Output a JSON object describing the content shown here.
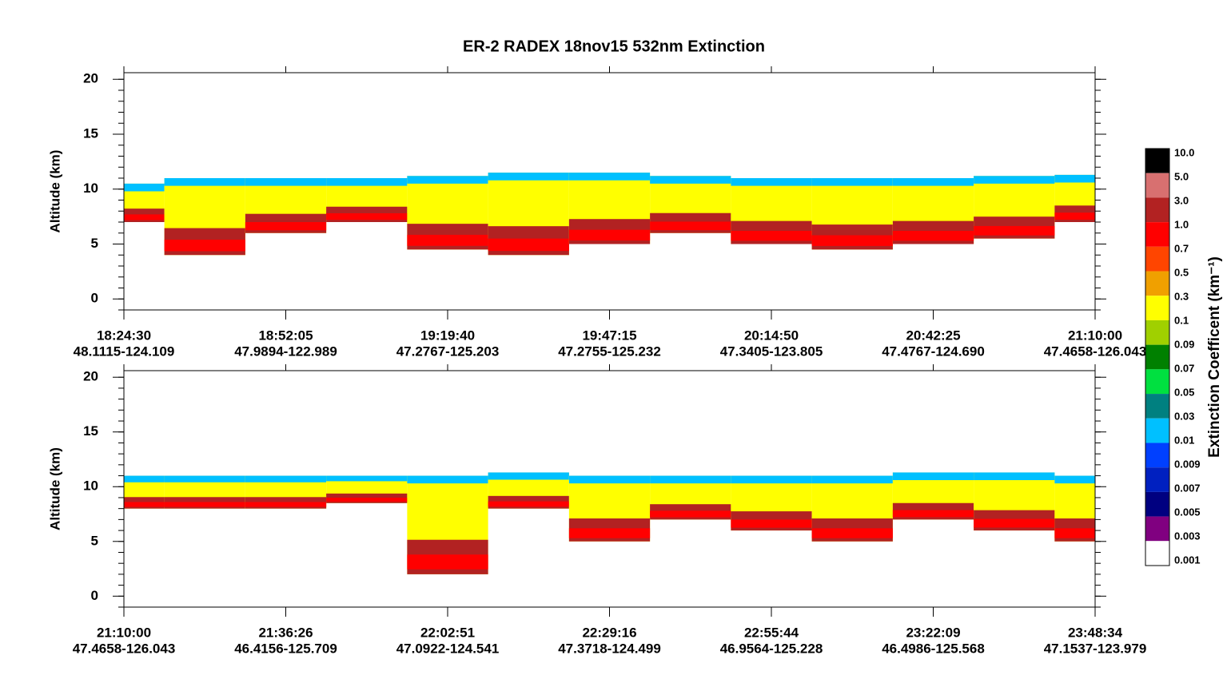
{
  "chart_data": {
    "type": "curtain",
    "title": "ER-2  RADEX  18nov15  532nm Extinction",
    "panels": [
      {
        "ylabel": "Altitude (km)",
        "ylim": [
          -1,
          20.6
        ],
        "yticks": [
          0,
          5,
          10,
          15,
          20
        ],
        "xticks": [
          {
            "time": "18:24:30",
            "location": "48.1115-124.109"
          },
          {
            "time": "18:52:05",
            "location": "47.9894-122.989"
          },
          {
            "time": "19:19:40",
            "location": "47.2767-125.203"
          },
          {
            "time": "19:47:15",
            "location": "47.2755-125.232"
          },
          {
            "time": "20:14:50",
            "location": "47.3405-123.805"
          },
          {
            "time": "20:42:25",
            "location": "47.4767-124.690"
          },
          {
            "time": "21:10:00",
            "location": "47.4658-126.043"
          }
        ],
        "top": [
          10.5,
          11,
          11,
          11,
          11.2,
          11.5,
          11.5,
          11.2,
          11,
          11,
          11,
          11.2,
          11.3
        ],
        "base": [
          7,
          4,
          6,
          7,
          4.5,
          4,
          5,
          6,
          5,
          4.5,
          5,
          5.5,
          7
        ]
      },
      {
        "ylabel": "Altitude (km)",
        "ylim": [
          -1,
          20.6
        ],
        "yticks": [
          0,
          5,
          10,
          15,
          20
        ],
        "xticks": [
          {
            "time": "21:10:00",
            "location": "47.4658-126.043"
          },
          {
            "time": "21:36:26",
            "location": "46.4156-125.709"
          },
          {
            "time": "22:02:51",
            "location": "47.0922-124.541"
          },
          {
            "time": "22:29:16",
            "location": "47.3718-124.499"
          },
          {
            "time": "22:55:44",
            "location": "46.9564-125.228"
          },
          {
            "time": "23:22:09",
            "location": "46.4986-125.568"
          },
          {
            "time": "23:48:34",
            "location": "47.1537-123.979"
          }
        ],
        "top": [
          11,
          11,
          11,
          11,
          11,
          11.3,
          11,
          11,
          11,
          11,
          11.3,
          11.3,
          11
        ],
        "base": [
          8,
          8,
          8,
          8.5,
          2,
          8,
          5,
          7,
          6,
          5,
          7,
          6,
          5
        ]
      }
    ],
    "colorbar": {
      "label": "Extinction Coefficent (km⁻¹)",
      "levels": [
        {
          "value": 10,
          "label": "10.0"
        },
        {
          "value": 5,
          "label": "5.0"
        },
        {
          "value": 3,
          "label": "3.0"
        },
        {
          "value": 1,
          "label": "1.0"
        },
        0.7,
        0.5,
        0.3,
        0.1,
        0.09,
        0.07,
        0.05,
        0.03,
        0.01,
        0.009,
        0.007,
        0.005,
        0.003,
        0.001
      ],
      "colors": [
        "#000000",
        "#d87070",
        "#b22222",
        "#ff0000",
        "#ff4500",
        "#f0a000",
        "#ffff00",
        "#a0d000",
        "#008000",
        "#00e040",
        "#008080",
        "#00c0ff",
        "#0040ff",
        "#0020c0",
        "#000080",
        "#800080",
        "#ffffff"
      ]
    }
  }
}
